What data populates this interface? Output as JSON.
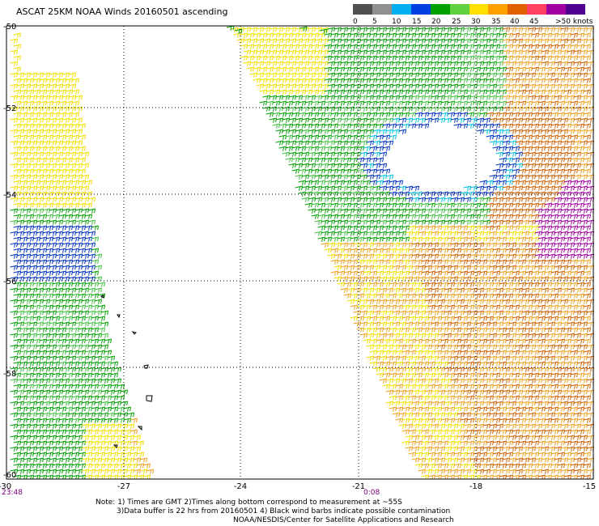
{
  "title": "ASCAT 25KM NOAA Winds 20160501 ascending",
  "legend": {
    "labels": [
      "0",
      "5",
      "10",
      "15",
      "20",
      "25",
      "30",
      "35",
      "40",
      "45",
      ">50 knots"
    ],
    "colors": [
      "#505050",
      "#909090",
      "#00b0f0",
      "#0040e0",
      "#00a000",
      "#60d040",
      "#ffe000",
      "#ffa000",
      "#e06000",
      "#ff4060",
      "#a000a0",
      "#500090"
    ]
  },
  "axes": {
    "lon_ticks": [
      "-30",
      "-27",
      "-24",
      "-21",
      "-18",
      "-15"
    ],
    "lat_ticks": [
      "-50",
      "-52",
      "-54",
      "-56",
      "-58",
      "-60"
    ]
  },
  "times": {
    "left": "23:48",
    "mid": "0:08"
  },
  "notes": {
    "line1": "Note: 1) Times are GMT 2)Times along bottom correspond to measurement at ~55S",
    "line2": "3)Data buffer is 22 hrs from 20160501 4) Black wind barbs indicate possible contamination",
    "line3": "NOAA/NESDIS/Center for Satellite Applications and Research"
  },
  "map": {
    "lon_range": [
      -30,
      -15
    ],
    "lat_range": [
      -50,
      -60
    ],
    "wind_color_scale": {
      "yellow": "#f0e000",
      "orange": "#f0a020",
      "dark_orange": "#d06000",
      "green": "#00a000",
      "light_green": "#40c040",
      "blue": "#0030c0",
      "cyan": "#00c0e0",
      "purple": "#a000a0"
    }
  }
}
